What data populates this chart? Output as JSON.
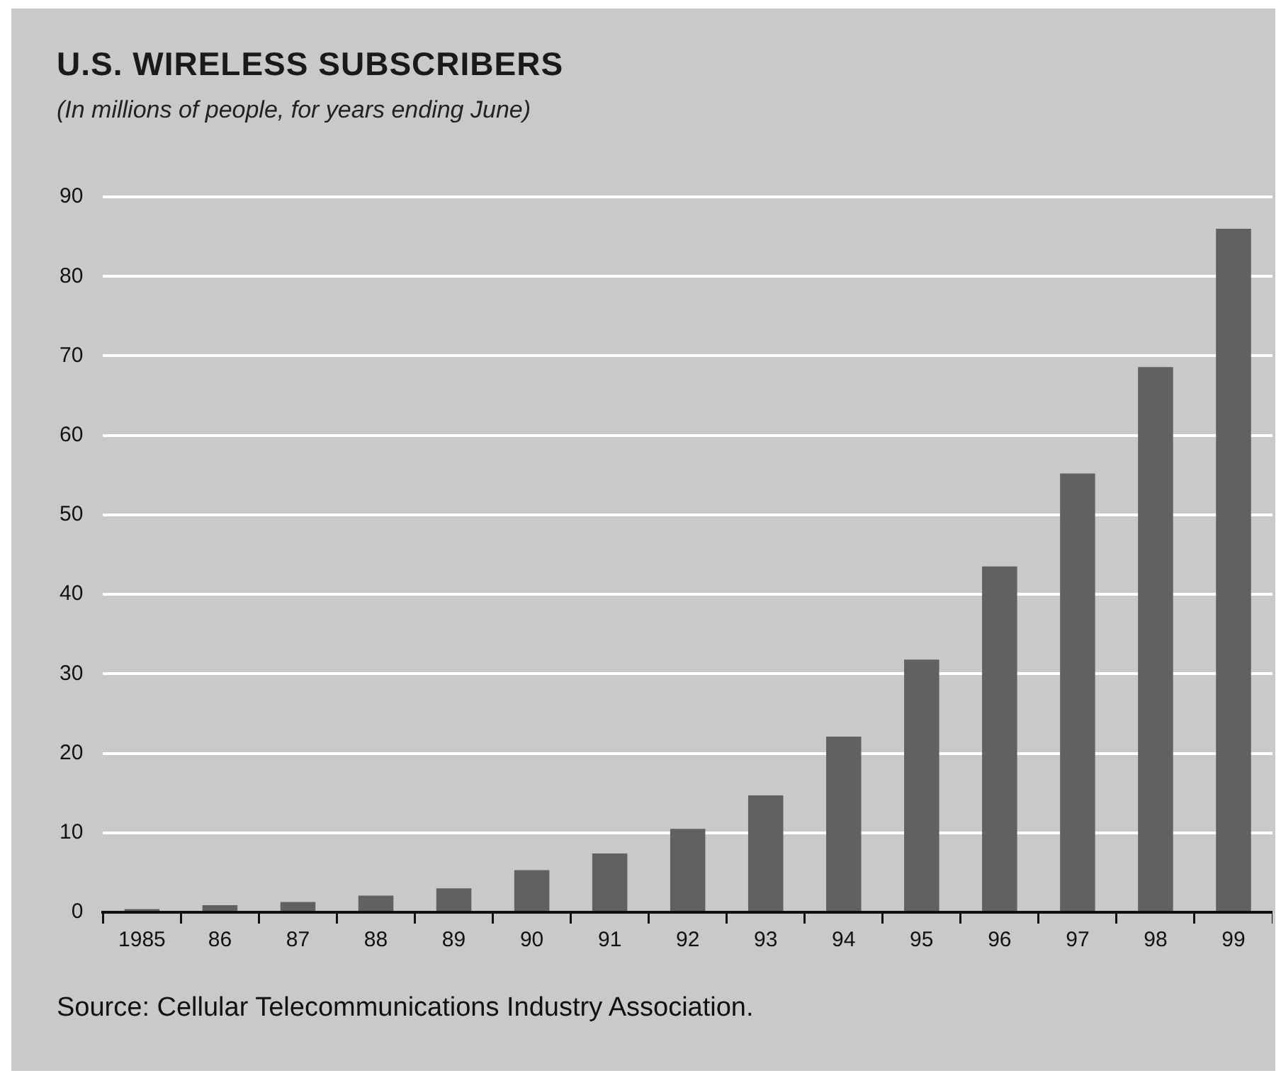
{
  "chart_data": {
    "type": "bar",
    "title": "U.S. WIRELESS SUBSCRIBERS",
    "subtitle": "(In millions of people, for years ending June)",
    "categories": [
      "1985",
      "86",
      "87",
      "88",
      "89",
      "90",
      "91",
      "92",
      "93",
      "94",
      "95",
      "96",
      "97",
      "98",
      "99"
    ],
    "values": [
      0.4,
      0.9,
      1.3,
      2.1,
      3.0,
      5.3,
      7.4,
      10.5,
      14.7,
      22.1,
      31.8,
      43.5,
      55.2,
      68.6,
      86.0
    ],
    "color": "#616161",
    "ylim": [
      0,
      90
    ],
    "yticks": [
      0,
      10,
      20,
      30,
      40,
      50,
      60,
      70,
      80,
      90
    ],
    "grid": "y",
    "annotations": [
      "Source: Cellular Telecommunications Industry Association."
    ]
  }
}
